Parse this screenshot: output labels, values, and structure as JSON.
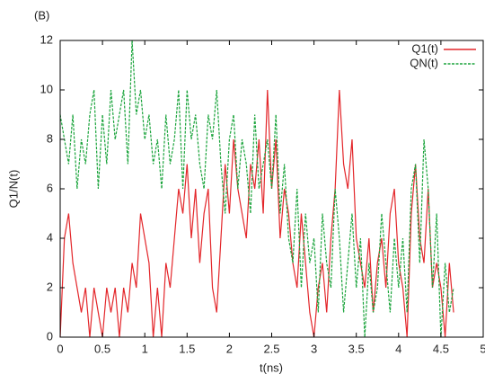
{
  "chart_data": {
    "type": "line",
    "title": "(B)",
    "xlabel": "t(ns)",
    "ylabel": "Q1/N(t)",
    "xlim": [
      0,
      5
    ],
    "ylim": [
      0,
      12
    ],
    "xticks": [
      0,
      0.5,
      1,
      1.5,
      2,
      2.5,
      3,
      3.5,
      4,
      4.5,
      5
    ],
    "yticks": [
      0,
      2,
      4,
      6,
      8,
      10,
      12
    ],
    "legend": "upper right",
    "x": [
      0,
      0.05,
      0.1,
      0.15,
      0.2,
      0.25,
      0.3,
      0.35,
      0.4,
      0.45,
      0.5,
      0.55,
      0.6,
      0.65,
      0.7,
      0.75,
      0.8,
      0.85,
      0.9,
      0.95,
      1,
      1.05,
      1.1,
      1.15,
      1.2,
      1.25,
      1.3,
      1.35,
      1.4,
      1.45,
      1.5,
      1.55,
      1.6,
      1.65,
      1.7,
      1.75,
      1.8,
      1.85,
      1.9,
      1.95,
      2,
      2.05,
      2.1,
      2.15,
      2.2,
      2.25,
      2.3,
      2.35,
      2.4,
      2.45,
      2.5,
      2.55,
      2.6,
      2.65,
      2.7,
      2.75,
      2.8,
      2.85,
      2.9,
      2.95,
      3,
      3.05,
      3.1,
      3.15,
      3.2,
      3.25,
      3.3,
      3.35,
      3.4,
      3.45,
      3.5,
      3.55,
      3.6,
      3.65,
      3.7,
      3.75,
      3.8,
      3.85,
      3.9,
      3.95,
      4,
      4.05,
      4.1,
      4.15,
      4.2,
      4.25,
      4.3,
      4.35,
      4.4,
      4.45,
      4.5,
      4.55,
      4.6,
      4.65
    ],
    "series": [
      {
        "name": "Q1(t)",
        "color": "#e3262a",
        "dash": false,
        "values": [
          0,
          4,
          5,
          3,
          2,
          1,
          2,
          0,
          2,
          1,
          0,
          2,
          1,
          2,
          0,
          2,
          1,
          3,
          2,
          5,
          4,
          3,
          0,
          2,
          0,
          3,
          2,
          4,
          6,
          5,
          7,
          4,
          6,
          3,
          5,
          6,
          2,
          1,
          4,
          7,
          5,
          8,
          6,
          5,
          4,
          7,
          6,
          8,
          5,
          10,
          6,
          8,
          4,
          6,
          5,
          3,
          2,
          5,
          3,
          1,
          0,
          2,
          3,
          1,
          4,
          6,
          10,
          7,
          6,
          8,
          4,
          3,
          2,
          4,
          1,
          3,
          4,
          2,
          5,
          6,
          3,
          2,
          0,
          5,
          7,
          4,
          3,
          6,
          2,
          3,
          2,
          0,
          3,
          1
        ]
      },
      {
        "name": "QN(t)",
        "color": "#1ba43c",
        "dash": true,
        "values": [
          9,
          8,
          7,
          9,
          6,
          8,
          7,
          9,
          10,
          6,
          9,
          7,
          10,
          8,
          9,
          10,
          7,
          12,
          9,
          10,
          8,
          9,
          7,
          8,
          6,
          9,
          7,
          8,
          10,
          6,
          10,
          8,
          9,
          7,
          6,
          9,
          8,
          10,
          7,
          5,
          8,
          9,
          6,
          8,
          7,
          5,
          9,
          6,
          7,
          8,
          6,
          9,
          5,
          7,
          4,
          3,
          6,
          2,
          5,
          3,
          4,
          1,
          5,
          3,
          2,
          6,
          4,
          1,
          3,
          5,
          2,
          4,
          0,
          3,
          1,
          2,
          5,
          3,
          1,
          4,
          2,
          4,
          1,
          6,
          7,
          3,
          8,
          6,
          2,
          5,
          0,
          3,
          1,
          2
        ]
      }
    ]
  }
}
